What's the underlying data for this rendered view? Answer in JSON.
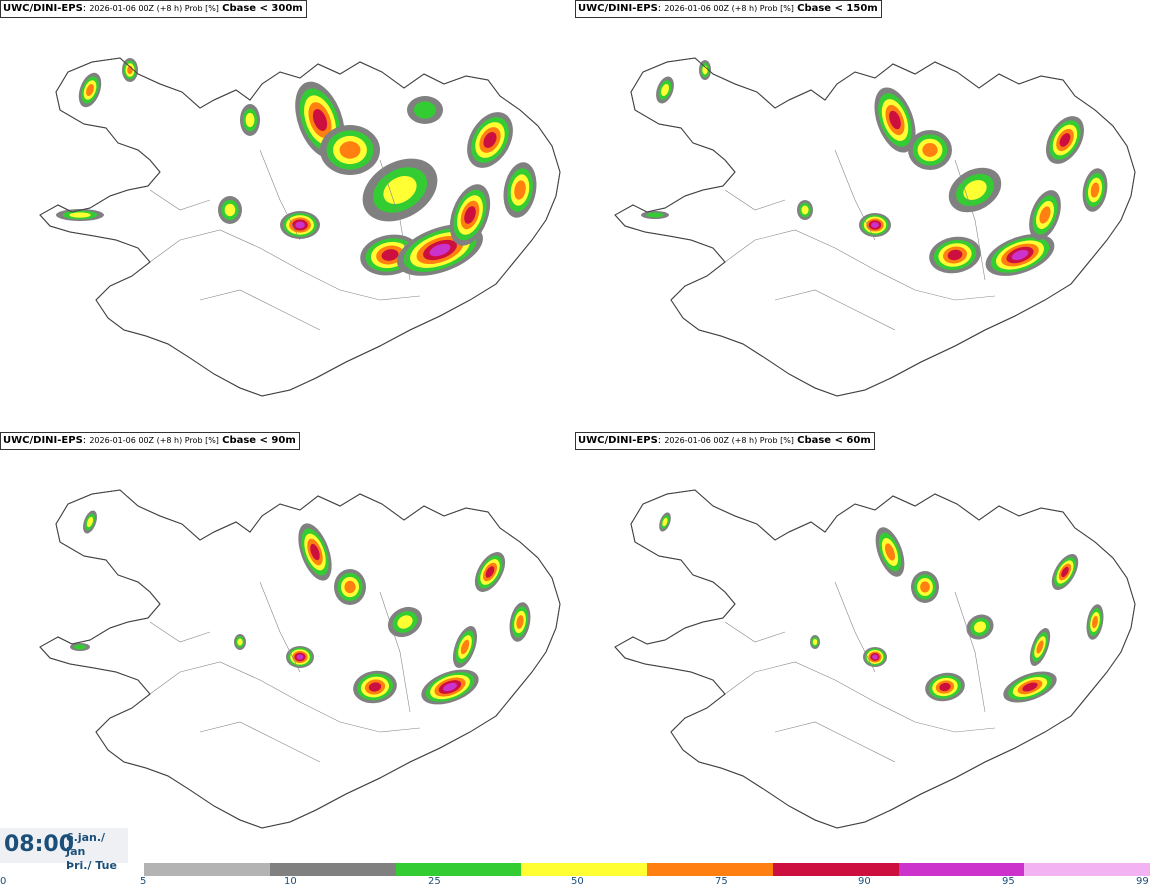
{
  "panels": [
    {
      "model": "UWC/DINI-EPS",
      "subtitle": "2026-01-06 00Z (+8 h) Prob [%]",
      "threshold": "Cbase < 300m"
    },
    {
      "model": "UWC/DINI-EPS",
      "subtitle": "2026-01-06 00Z (+8 h) Prob [%]",
      "threshold": "Cbase < 150m"
    },
    {
      "model": "UWC/DINI-EPS",
      "subtitle": "2026-01-06 00Z (+8 h) Prob [%]",
      "threshold": "Cbase < 90m"
    },
    {
      "model": "UWC/DINI-EPS",
      "subtitle": "2026-01-06 00Z (+8 h) Prob [%]",
      "threshold": "Cbase < 60m"
    }
  ],
  "time": {
    "clock": "08:00",
    "date_line1": "6.jan./ Jan",
    "date_line2": "Þri./ Tue"
  },
  "legend": {
    "ticks": [
      "0",
      "5",
      "10",
      "25",
      "50",
      "75",
      "90",
      "95",
      "99"
    ],
    "colors": [
      "#b3b3b3",
      "#808080",
      "#33cc33",
      "#ffff33",
      "#ff7f11",
      "#cc0f3e",
      "#cc33cc",
      "#f3b3f3"
    ]
  }
}
